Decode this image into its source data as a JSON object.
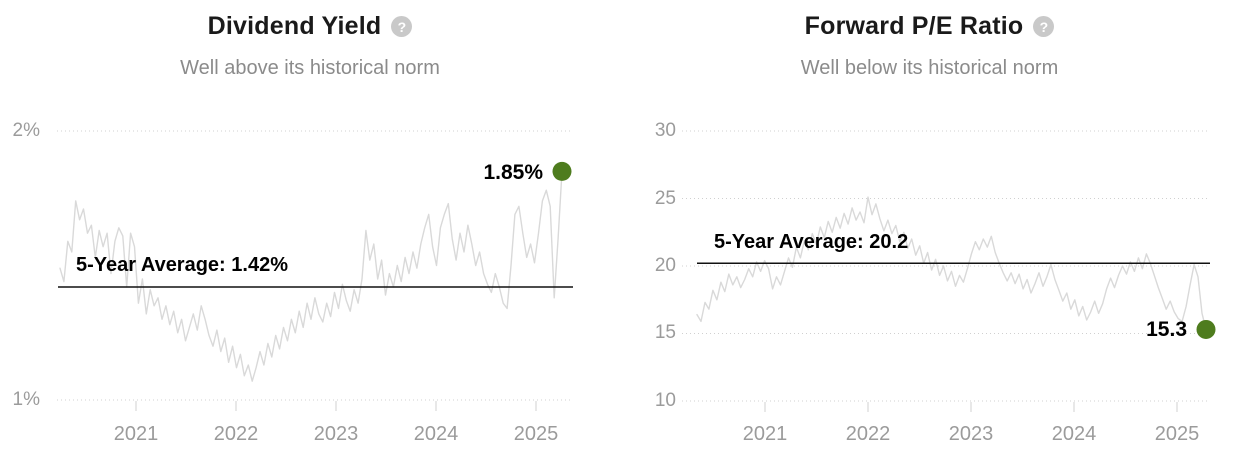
{
  "colors": {
    "accent_green": "#4e7c1e",
    "series_line": "#d9d9d9",
    "average_line": "#111111",
    "gridline": "#d0d0d0",
    "tick_mark": "#d9d9d9",
    "title_text": "#1a1a1a",
    "subtitle_text": "#8b8b8b",
    "axis_text": "#9b9b9b"
  },
  "help_icon_glyph": "?",
  "chart_data": [
    {
      "type": "line",
      "title": "Dividend Yield",
      "subtitle": "Well above its historical norm",
      "legend": "none",
      "grid": "dotted horizontal lines at y ticks only",
      "xlabel": "",
      "ylabel": "",
      "x_ticks": [
        "2021",
        "2022",
        "2023",
        "2024",
        "2025"
      ],
      "x_range_years": [
        2020.3,
        2025.3
      ],
      "ylim": [
        1,
        2
      ],
      "y_ticks": [
        {
          "label": "2%",
          "value": 2
        },
        {
          "label": "1%",
          "value": 1
        }
      ],
      "average": 1.42,
      "average_label": "5-Year Average: 1.42%",
      "current_value": 1.85,
      "current_label": "1.85%",
      "values": [
        1.49,
        1.44,
        1.59,
        1.55,
        1.74,
        1.67,
        1.71,
        1.62,
        1.65,
        1.53,
        1.63,
        1.57,
        1.62,
        1.47,
        1.59,
        1.64,
        1.61,
        1.42,
        1.62,
        1.57,
        1.36,
        1.45,
        1.32,
        1.41,
        1.35,
        1.38,
        1.3,
        1.35,
        1.28,
        1.33,
        1.25,
        1.3,
        1.22,
        1.27,
        1.32,
        1.26,
        1.35,
        1.3,
        1.24,
        1.2,
        1.26,
        1.18,
        1.23,
        1.14,
        1.2,
        1.12,
        1.17,
        1.09,
        1.13,
        1.07,
        1.12,
        1.18,
        1.13,
        1.21,
        1.16,
        1.24,
        1.19,
        1.27,
        1.22,
        1.3,
        1.25,
        1.33,
        1.27,
        1.36,
        1.3,
        1.38,
        1.32,
        1.29,
        1.36,
        1.31,
        1.4,
        1.34,
        1.43,
        1.37,
        1.33,
        1.41,
        1.36,
        1.45,
        1.63,
        1.52,
        1.58,
        1.45,
        1.52,
        1.39,
        1.47,
        1.42,
        1.5,
        1.44,
        1.53,
        1.47,
        1.55,
        1.49,
        1.58,
        1.64,
        1.69,
        1.57,
        1.5,
        1.64,
        1.69,
        1.73,
        1.6,
        1.52,
        1.62,
        1.55,
        1.65,
        1.58,
        1.5,
        1.55,
        1.47,
        1.43,
        1.4,
        1.47,
        1.42,
        1.36,
        1.34,
        1.5,
        1.69,
        1.72,
        1.62,
        1.53,
        1.58,
        1.51,
        1.62,
        1.74,
        1.78,
        1.72,
        1.38,
        1.6,
        1.85
      ]
    },
    {
      "type": "line",
      "title": "Forward P/E Ratio",
      "subtitle": "Well below its historical norm",
      "legend": "none",
      "grid": "dotted horizontal lines at y ticks only",
      "xlabel": "",
      "ylabel": "",
      "x_ticks": [
        "2021",
        "2022",
        "2023",
        "2024",
        "2025"
      ],
      "x_range_years": [
        2020.3,
        2025.3
      ],
      "ylim": [
        10,
        30
      ],
      "y_ticks": [
        {
          "label": "30",
          "value": 30
        },
        {
          "label": "25",
          "value": 25
        },
        {
          "label": "20",
          "value": 20
        },
        {
          "label": "15",
          "value": 15
        },
        {
          "label": "10",
          "value": 10
        }
      ],
      "average": 20.2,
      "average_label": "5-Year Average: 20.2",
      "current_value": 15.3,
      "current_label": "15.3",
      "values": [
        16.4,
        15.9,
        17.3,
        16.8,
        18.2,
        17.5,
        18.8,
        18.1,
        19.4,
        18.6,
        19.2,
        18.4,
        19.0,
        19.8,
        19.2,
        20.3,
        19.6,
        20.4,
        19.8,
        18.3,
        19.2,
        18.6,
        19.6,
        20.6,
        19.9,
        21.4,
        20.6,
        21.9,
        21.2,
        22.4,
        21.6,
        22.9,
        22.1,
        23.3,
        22.5,
        23.6,
        22.8,
        23.9,
        23.1,
        24.3,
        23.4,
        24.0,
        23.2,
        25.1,
        23.8,
        24.6,
        23.5,
        22.6,
        23.4,
        22.4,
        23.0,
        21.8,
        22.5,
        21.3,
        22.0,
        20.8,
        21.5,
        20.2,
        21.0,
        19.7,
        20.5,
        19.3,
        20.0,
        18.9,
        19.6,
        18.5,
        19.3,
        18.8,
        19.8,
        20.9,
        21.8,
        21.2,
        22.0,
        21.4,
        22.2,
        21.0,
        20.2,
        19.5,
        18.9,
        19.5,
        18.7,
        19.4,
        18.3,
        19.0,
        18.0,
        18.7,
        19.5,
        18.5,
        19.2,
        20.1,
        19.0,
        18.2,
        17.4,
        18.0,
        16.8,
        17.5,
        16.3,
        17.0,
        16.0,
        16.6,
        17.4,
        16.5,
        17.2,
        18.3,
        19.1,
        18.4,
        19.3,
        20.0,
        19.4,
        20.3,
        19.6,
        20.6,
        19.8,
        20.9,
        20.2,
        19.3,
        18.4,
        17.6,
        16.8,
        17.4,
        16.6,
        16.1,
        15.9,
        17.0,
        18.6,
        20.1,
        19.2,
        16.5,
        15.3
      ]
    }
  ]
}
